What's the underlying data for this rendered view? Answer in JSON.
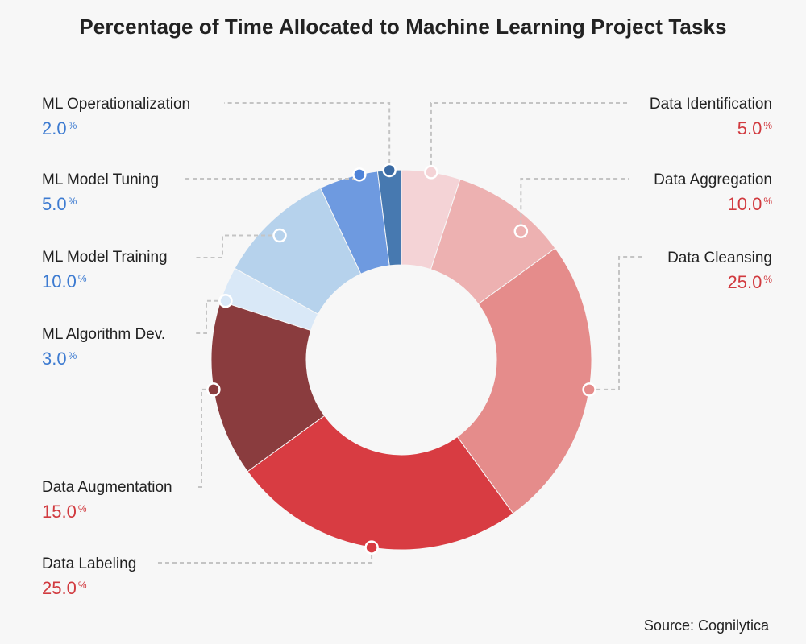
{
  "title": "Percentage of Time Allocated to Machine Learning Project Tasks",
  "source": "Source: Cognilytica",
  "chart_data": {
    "type": "donut",
    "title": "Percentage of Time Allocated to Machine Learning Project Tasks",
    "unit_suffix": "%",
    "slices": [
      {
        "name": "Data Identification",
        "value": 5.0,
        "display": "5.0",
        "color": "#f4d3d6",
        "marker": "#f4d3d6",
        "text_color": "#d13a3f"
      },
      {
        "name": "Data Aggregation",
        "value": 10.0,
        "display": "10.0",
        "color": "#edb1b1",
        "marker": "#edb1b1",
        "text_color": "#d13a3f"
      },
      {
        "name": "Data Cleansing",
        "value": 25.0,
        "display": "25.0",
        "color": "#e58c8b",
        "marker": "#e58c8b",
        "text_color": "#d13a3f"
      },
      {
        "name": "Data Labeling",
        "value": 25.0,
        "display": "25.0",
        "color": "#d83c42",
        "marker": "#d83c42",
        "text_color": "#d13a3f"
      },
      {
        "name": "Data Augmentation",
        "value": 15.0,
        "display": "15.0",
        "color": "#8a3c3e",
        "marker": "#8a3c3e",
        "text_color": "#d13a3f"
      },
      {
        "name": "ML Algorithm Dev.",
        "value": 3.0,
        "display": "3.0",
        "color": "#d9e8f7",
        "marker": "#d9e8f7",
        "text_color": "#3d7bd1"
      },
      {
        "name": "ML Model Training",
        "value": 10.0,
        "display": "10.0",
        "color": "#b6d2ec",
        "marker": "#b6d2ec",
        "text_color": "#3d7bd1"
      },
      {
        "name": "ML Model Tuning",
        "value": 5.0,
        "display": "5.0",
        "color": "#6e9ae0",
        "marker": "#4f83d8",
        "text_color": "#3d7bd1"
      },
      {
        "name": "ML Operationalization",
        "value": 2.0,
        "display": "2.0",
        "color": "#4779b0",
        "marker": "#3a6aa3",
        "text_color": "#3d7bd1"
      }
    ]
  }
}
